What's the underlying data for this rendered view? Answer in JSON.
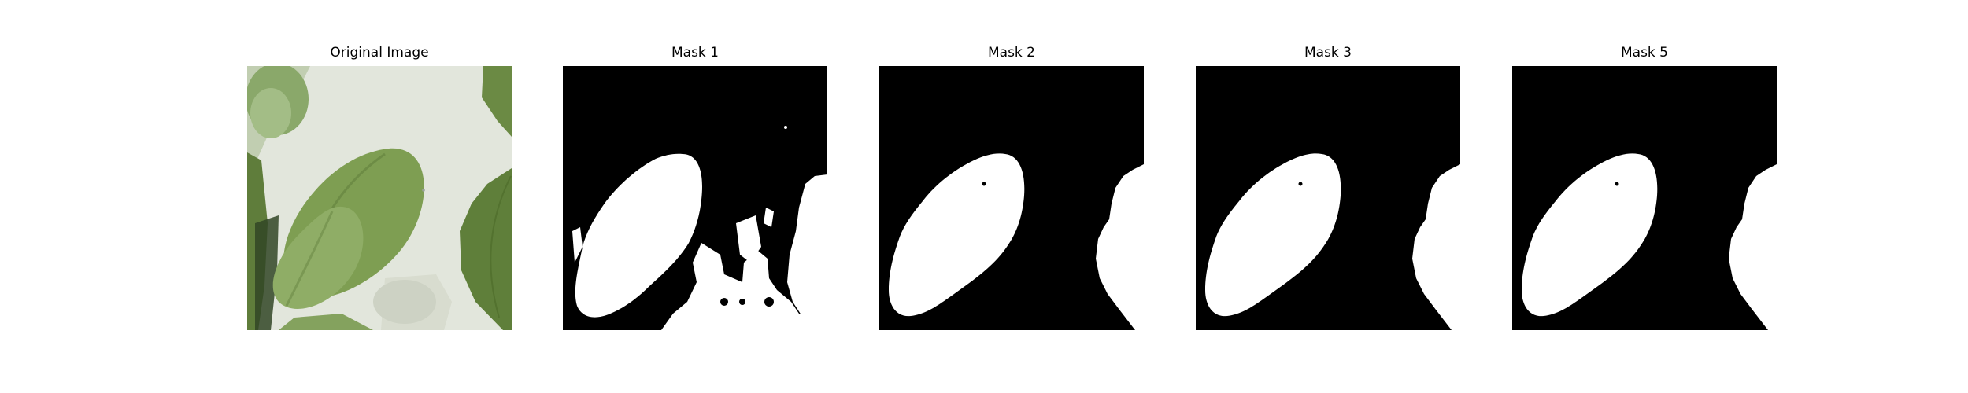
{
  "panels": [
    {
      "title": "Original Image",
      "image": "photo-green-leaves"
    },
    {
      "title": "Mask 1",
      "image": "binary-mask-1"
    },
    {
      "title": "Mask 2",
      "image": "binary-mask-2"
    },
    {
      "title": "Mask 3",
      "image": "binary-mask-3"
    },
    {
      "title": "Mask 5",
      "image": "binary-mask-5"
    }
  ],
  "colors": {
    "background": "#ffffff",
    "mask_bg": "#000000",
    "mask_fg": "#ffffff",
    "leaf_dark": "#6e8f45",
    "leaf_mid": "#86a560",
    "leaf_light": "#a7c08a",
    "backdrop": "#e4e8df"
  }
}
